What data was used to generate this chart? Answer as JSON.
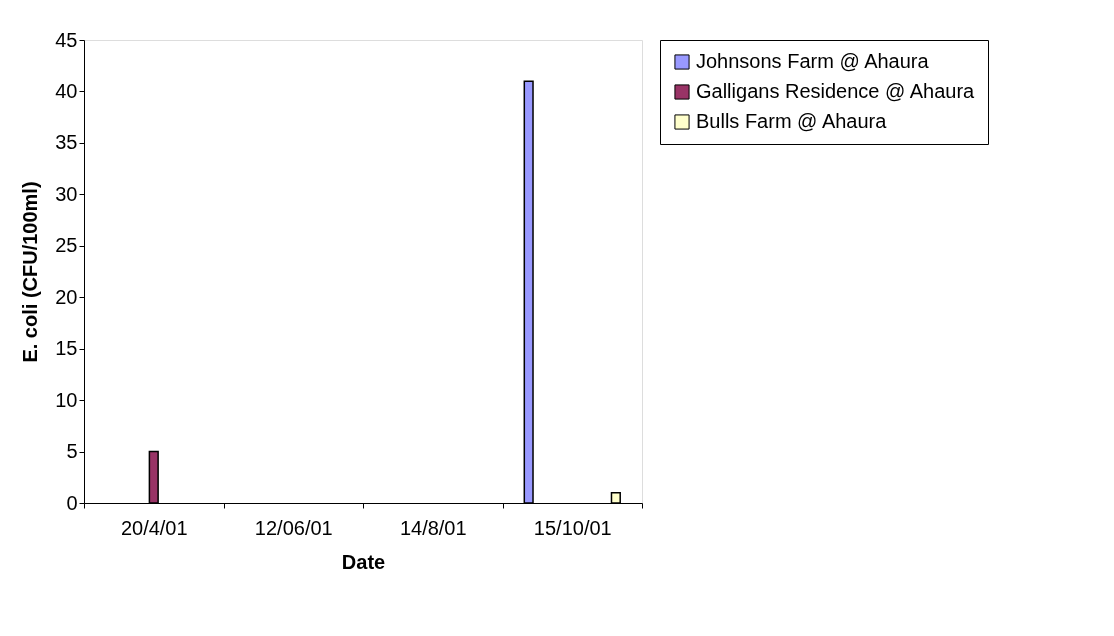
{
  "chart_data": {
    "type": "bar",
    "xlabel": "Date",
    "ylabel": "E. coli (CFU/100ml)",
    "categories": [
      "20/4/01",
      "12/06/01",
      "14/8/01",
      "15/10/01"
    ],
    "series": [
      {
        "name": "Johnsons Farm @ Ahaura",
        "color": "#9999ff",
        "values": [
          null,
          null,
          null,
          41
        ]
      },
      {
        "name": "Galligans Residence @ Ahaura",
        "color": "#993366",
        "values": [
          5,
          null,
          null,
          null
        ]
      },
      {
        "name": "Bulls Farm @ Ahaura",
        "color": "#ffffcc",
        "values": [
          null,
          null,
          null,
          1
        ]
      }
    ],
    "ylim": [
      0,
      45
    ],
    "yticks": [
      0,
      5,
      10,
      15,
      20,
      25,
      30,
      35,
      40,
      45
    ],
    "grid": false,
    "legend": "right"
  }
}
